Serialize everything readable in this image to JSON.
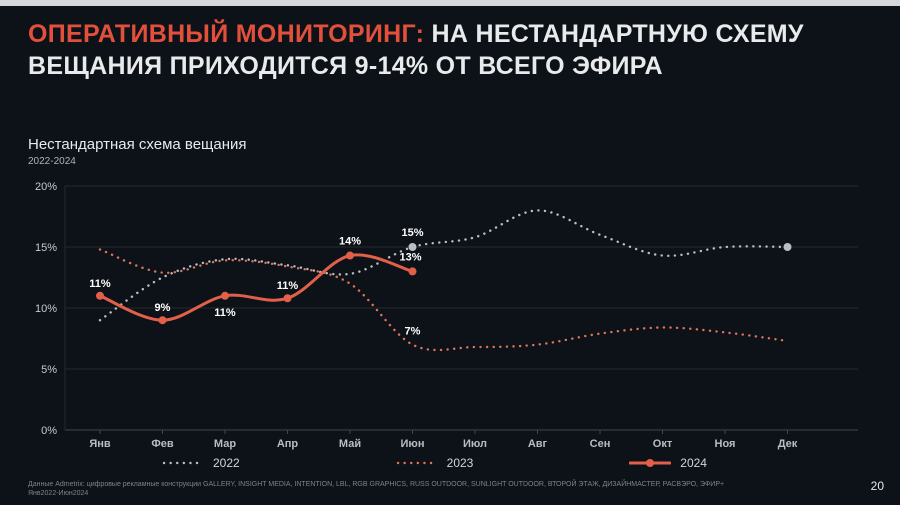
{
  "window": {
    "top_strip_color": "#d7d7d7",
    "background_color": "#0d1218"
  },
  "header": {
    "title_accent": "ОПЕРАТИВНЫЙ МОНИТОРИНГ:",
    "title_line1_rest": " НА НЕСТАНДАРТНУЮ СХЕМУ",
    "title_line2": "ВЕЩАНИЯ ПРИХОДИТСЯ 9-14% ОТ ВСЕГО ЭФИРА",
    "accent_color": "#e2503c"
  },
  "chart_data": {
    "type": "line",
    "title": "Нестандартная схема вещания",
    "subtitle": "2022-2024",
    "categories": [
      "Янв",
      "Фев",
      "Мар",
      "Апр",
      "Май",
      "Июн",
      "Июл",
      "Авг",
      "Сен",
      "Окт",
      "Ноя",
      "Дек"
    ],
    "ylim": [
      0,
      20
    ],
    "yticks": [
      0,
      5,
      10,
      15,
      20
    ],
    "ytick_labels": [
      "0%",
      "5%",
      "10%",
      "15%",
      "20%"
    ],
    "grid": true,
    "legend_position": "bottom",
    "colors": {
      "grid": "#252b32",
      "axis": "#3f464d",
      "tick_text": "#c7cbcf",
      "month_text": "#b9bec3",
      "value_label": "#ffffff"
    },
    "series": [
      {
        "name": "2022",
        "style": "dotted",
        "color": "#b9bec4",
        "values": [
          9,
          12.5,
          14,
          13.5,
          12.8,
          15,
          15.8,
          18,
          16,
          14.3,
          15,
          15
        ],
        "marker_points": [
          5,
          11
        ],
        "labels": [
          {
            "x": 5,
            "text": "15%",
            "dy": -11
          }
        ]
      },
      {
        "name": "2023",
        "style": "dotted",
        "color": "#e0735a",
        "values": [
          14.8,
          12.9,
          13.9,
          13.4,
          12,
          7,
          6.8,
          7,
          7.9,
          8.4,
          8,
          7.3
        ],
        "labels": [
          {
            "x": 5,
            "text": "7%",
            "dy": -10
          }
        ]
      },
      {
        "name": "2024",
        "style": "solid",
        "color": "#e2604a",
        "values": [
          11,
          9,
          11,
          10.8,
          14.3,
          13,
          null,
          null,
          null,
          null,
          null,
          null
        ],
        "markers": true,
        "labels": [
          {
            "x": 0,
            "text": "11%",
            "dy": -9
          },
          {
            "x": 1,
            "text": "9%",
            "dy": -9
          },
          {
            "x": 2,
            "text": "11%",
            "dy": 20
          },
          {
            "x": 3,
            "text": "11%",
            "dy": -9
          },
          {
            "x": 4,
            "text": "14%",
            "dy": -11
          },
          {
            "x": 5,
            "text": "13%",
            "dy": -11,
            "dx": -2
          }
        ]
      }
    ]
  },
  "footer": {
    "source_line1": "Данные Admetrix: цифровые рекламные конструкции GALLERY, INSIGHT MEDIA, INTENTION, LBL, RGB GRAPHICS, RUSS OUTDOOR, SUNLIGHT OUTDOOR, ВТОРОЙ ЭТАЖ, ДИЗАЙНМАСТЕР, РАСВЭРО, ЭФИР+",
    "source_line2": "Янв2022-Июн2024",
    "page_number": "20"
  }
}
